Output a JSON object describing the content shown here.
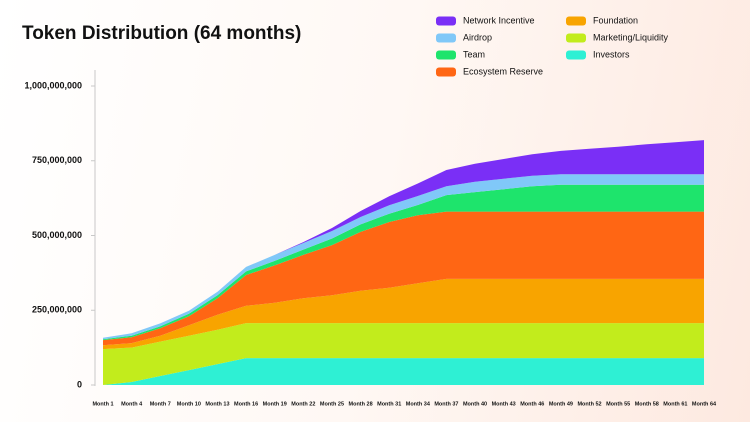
{
  "chart_data": {
    "type": "stacked-area",
    "title": "Token Distribution (64 months)",
    "categories": [
      "Month 1",
      "Month 4",
      "Month 7",
      "Month 10",
      "Month 13",
      "Month 16",
      "Month 19",
      "Month 22",
      "Month 25",
      "Month 28",
      "Month 31",
      "Month 34",
      "Month 37",
      "Month 40",
      "Month 43",
      "Month 46",
      "Month 49",
      "Month 52",
      "Month 55",
      "Month 58",
      "Month 61",
      "Month 64"
    ],
    "ylim": [
      0,
      1000000000
    ],
    "yticks": [
      0,
      {
        "value": 250000000,
        "label": "250,000,000"
      },
      {
        "value": 500000000,
        "label": "500,000,000"
      },
      {
        "value": 750000000,
        "label": "750,000,000"
      },
      {
        "value": 1000000000,
        "label": "1,000,000,000"
      }
    ],
    "grid": false,
    "legend": "top-right",
    "series": [
      {
        "name": "Investors",
        "color": "#2ef0d4",
        "values": [
          0,
          10000000,
          30000000,
          50000000,
          70000000,
          90000000,
          90000000,
          90000000,
          90000000,
          90000000,
          90000000,
          90000000,
          90000000,
          90000000,
          90000000,
          90000000,
          90000000,
          90000000,
          90000000,
          90000000,
          90000000,
          90000000
        ]
      },
      {
        "name": "Marketing/Liquidity",
        "color": "#c2ec1c",
        "values": [
          120000000,
          115000000,
          115000000,
          115000000,
          115000000,
          117000000,
          117000000,
          117000000,
          117000000,
          117000000,
          117000000,
          117000000,
          117000000,
          117000000,
          117000000,
          117000000,
          117000000,
          117000000,
          117000000,
          117000000,
          117000000,
          117000000
        ]
      },
      {
        "name": "Foundation",
        "color": "#f8a400",
        "values": [
          13000000,
          15000000,
          20000000,
          35000000,
          50000000,
          58000000,
          68000000,
          83000000,
          93000000,
          108000000,
          118000000,
          133000000,
          148000000,
          148000000,
          148000000,
          148000000,
          148000000,
          148000000,
          148000000,
          148000000,
          148000000,
          148000000
        ]
      },
      {
        "name": "Ecosystem Reserve",
        "color": "#ff6614",
        "values": [
          17000000,
          20000000,
          25000000,
          30000000,
          55000000,
          103000000,
          125000000,
          145000000,
          168000000,
          197000000,
          220000000,
          228000000,
          225000000,
          225000000,
          225000000,
          225000000,
          225000000,
          225000000,
          225000000,
          225000000,
          225000000,
          225000000
        ]
      },
      {
        "name": "Team",
        "color": "#1ee46c",
        "values": [
          3000000,
          5000000,
          6000000,
          8000000,
          10000000,
          12000000,
          15000000,
          18000000,
          22000000,
          25000000,
          28000000,
          34000000,
          55000000,
          65000000,
          75000000,
          85000000,
          90000000,
          90000000,
          90000000,
          90000000,
          90000000,
          90000000
        ]
      },
      {
        "name": "Airdrop",
        "color": "#80c8f8",
        "values": [
          5000000,
          8000000,
          10000000,
          10000000,
          12000000,
          15000000,
          20000000,
          22000000,
          25000000,
          25000000,
          28000000,
          30000000,
          30000000,
          35000000,
          35000000,
          35000000,
          35000000,
          35000000,
          35000000,
          35000000,
          35000000,
          35000000
        ]
      },
      {
        "name": "Network Incentive",
        "color": "#7a2ff6",
        "values": [
          0,
          0,
          0,
          0,
          0,
          0,
          0,
          3000000,
          10000000,
          20000000,
          30000000,
          42000000,
          54000000,
          60000000,
          66000000,
          72000000,
          78000000,
          85000000,
          92000000,
          100000000,
          107000000,
          114000000
        ]
      }
    ]
  }
}
